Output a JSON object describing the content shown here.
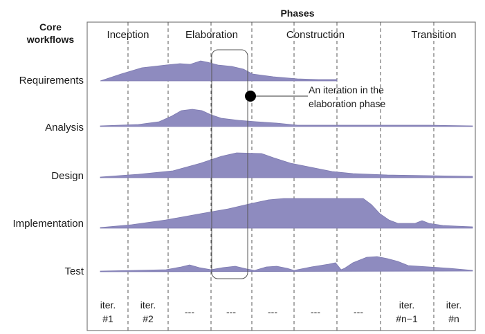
{
  "title": "Phases",
  "rows_header": [
    "Core",
    "workflows"
  ],
  "phases": [
    "Inception",
    "Elaboration",
    "Construction",
    "Transition"
  ],
  "workflows": [
    "Requirements",
    "Analysis",
    "Design",
    "Implementation",
    "Test"
  ],
  "iterations": [
    [
      "iter.",
      "#1"
    ],
    [
      "iter.",
      "#2"
    ],
    [
      "---"
    ],
    [
      "---"
    ],
    [
      "---"
    ],
    [
      "---"
    ],
    [
      "---"
    ],
    [
      "iter.",
      "#n−1"
    ],
    [
      "iter.",
      "#n"
    ]
  ],
  "annotation": [
    "An iteration in the",
    "elaboration phase"
  ],
  "colors": {
    "hump": "#8e8bbf",
    "frame": "#7a7a7a"
  }
}
